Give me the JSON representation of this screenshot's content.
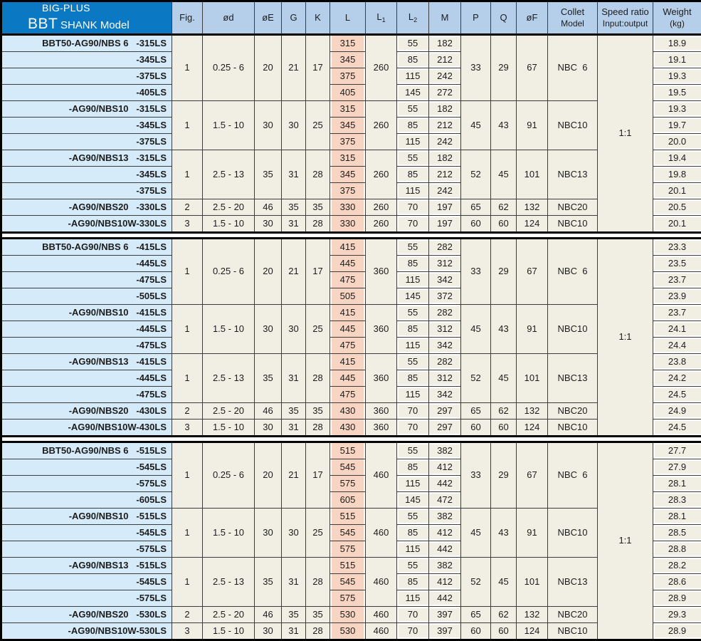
{
  "header": {
    "brand": "BIG-PLUS",
    "model_big": "BBT",
    "model_rest": "SHANK Model"
  },
  "colors": {
    "header_blue": "#0a78c2",
    "column_header_bg": "#b5cfea",
    "model_cell_bg": "#d6ebf9",
    "l_column_bg": "#f8d5c3",
    "data_cell_bg": "#f1efe3",
    "border": "#3c3c3c"
  },
  "columns": [
    {
      "key": "fig",
      "label": "Fig."
    },
    {
      "key": "od",
      "label": "ød"
    },
    {
      "key": "oE",
      "label": "øE"
    },
    {
      "key": "G",
      "label": "G"
    },
    {
      "key": "K",
      "label": "K"
    },
    {
      "key": "L",
      "label": "L"
    },
    {
      "key": "L1",
      "label": "L",
      "sub": "1"
    },
    {
      "key": "L2",
      "label": "L",
      "sub": "2"
    },
    {
      "key": "M",
      "label": "M"
    },
    {
      "key": "P",
      "label": "P"
    },
    {
      "key": "Q",
      "label": "Q"
    },
    {
      "key": "oF",
      "label": "øF"
    },
    {
      "key": "collet",
      "label": "Collet",
      "line2": "Model"
    },
    {
      "key": "speed",
      "label": "Speed ratio",
      "line2": "Input:output"
    },
    {
      "key": "weight",
      "label": "Weight",
      "line2": "(kg)"
    }
  ],
  "sections": [
    {
      "speed_ratio": "1:1",
      "groups": [
        {
          "fig": "1",
          "od": "0.25 - 6",
          "oE": "20",
          "G": "21",
          "K": "17",
          "L1": "260",
          "P": "33",
          "Q": "29",
          "oF": "67",
          "collet": "NBC  6",
          "rows": [
            {
              "model": "BBT50-AG90/NBS 6   -315LS",
              "L": "315",
              "L2": "55",
              "M": "182",
              "weight": "18.9"
            },
            {
              "model": "-345LS",
              "L": "345",
              "L2": "85",
              "M": "212",
              "weight": "19.1"
            },
            {
              "model": "-375LS",
              "L": "375",
              "L2": "115",
              "M": "242",
              "weight": "19.3"
            },
            {
              "model": "-405LS",
              "L": "405",
              "L2": "145",
              "M": "272",
              "weight": "19.5"
            }
          ]
        },
        {
          "fig": "1",
          "od": "1.5 - 10",
          "oE": "30",
          "G": "30",
          "K": "25",
          "L1": "260",
          "P": "45",
          "Q": "43",
          "oF": "91",
          "collet": "NBC10",
          "rows": [
            {
              "model": "-AG90/NBS10   -315LS",
              "L": "315",
              "L2": "55",
              "M": "182",
              "weight": "19.3"
            },
            {
              "model": "-345LS",
              "L": "345",
              "L2": "85",
              "M": "212",
              "weight": "19.7"
            },
            {
              "model": "-375LS",
              "L": "375",
              "L2": "115",
              "M": "242",
              "weight": "20.0"
            }
          ]
        },
        {
          "fig": "1",
          "od": "2.5 - 13",
          "oE": "35",
          "G": "31",
          "K": "28",
          "L1": "260",
          "P": "52",
          "Q": "45",
          "oF": "101",
          "collet": "NBC13",
          "rows": [
            {
              "model": "-AG90/NBS13   -315LS",
              "L": "315",
              "L2": "55",
              "M": "182",
              "weight": "19.4"
            },
            {
              "model": "-345LS",
              "L": "345",
              "L2": "85",
              "M": "212",
              "weight": "19.8"
            },
            {
              "model": "-375LS",
              "L": "375",
              "L2": "115",
              "M": "242",
              "weight": "20.1"
            }
          ]
        },
        {
          "fig": "2",
          "od": "2.5 - 20",
          "oE": "46",
          "G": "35",
          "K": "35",
          "L1": "260",
          "P": "65",
          "Q": "62",
          "oF": "132",
          "collet": "NBC20",
          "rows": [
            {
              "model": "-AG90/NBS20   -330LS",
              "L": "330",
              "L2": "70",
              "M": "197",
              "weight": "20.5"
            }
          ]
        },
        {
          "fig": "3",
          "od": "1.5 - 10",
          "oE": "30",
          "G": "31",
          "K": "28",
          "L1": "260",
          "P": "60",
          "Q": "60",
          "oF": "124",
          "collet": "NBC10",
          "rows": [
            {
              "model": "-AG90/NBS10W-330LS",
              "L": "330",
              "L2": "70",
              "M": "197",
              "weight": "20.1"
            }
          ]
        }
      ]
    },
    {
      "speed_ratio": "1:1",
      "groups": [
        {
          "fig": "1",
          "od": "0.25 - 6",
          "oE": "20",
          "G": "21",
          "K": "17",
          "L1": "360",
          "P": "33",
          "Q": "29",
          "oF": "67",
          "collet": "NBC  6",
          "rows": [
            {
              "model": "BBT50-AG90/NBS 6   -415LS",
              "L": "415",
              "L2": "55",
              "M": "282",
              "weight": "23.3"
            },
            {
              "model": "-445LS",
              "L": "445",
              "L2": "85",
              "M": "312",
              "weight": "23.5"
            },
            {
              "model": "-475LS",
              "L": "475",
              "L2": "115",
              "M": "342",
              "weight": "23.7"
            },
            {
              "model": "-505LS",
              "L": "505",
              "L2": "145",
              "M": "372",
              "weight": "23.9"
            }
          ]
        },
        {
          "fig": "1",
          "od": "1.5 - 10",
          "oE": "30",
          "G": "30",
          "K": "25",
          "L1": "360",
          "P": "45",
          "Q": "43",
          "oF": "91",
          "collet": "NBC10",
          "rows": [
            {
              "model": "-AG90/NBS10   -415LS",
              "L": "415",
              "L2": "55",
              "M": "282",
              "weight": "23.7"
            },
            {
              "model": "-445LS",
              "L": "445",
              "L2": "85",
              "M": "312",
              "weight": "24.1"
            },
            {
              "model": "-475LS",
              "L": "475",
              "L2": "115",
              "M": "342",
              "weight": "24.4"
            }
          ]
        },
        {
          "fig": "1",
          "od": "2.5 - 13",
          "oE": "35",
          "G": "31",
          "K": "28",
          "L1": "360",
          "P": "52",
          "Q": "45",
          "oF": "101",
          "collet": "NBC13",
          "rows": [
            {
              "model": "-AG90/NBS13   -415LS",
              "L": "415",
              "L2": "55",
              "M": "282",
              "weight": "23.8"
            },
            {
              "model": "-445LS",
              "L": "445",
              "L2": "85",
              "M": "312",
              "weight": "24.2"
            },
            {
              "model": "-475LS",
              "L": "475",
              "L2": "115",
              "M": "342",
              "weight": "24.5"
            }
          ]
        },
        {
          "fig": "2",
          "od": "2.5 - 20",
          "oE": "46",
          "G": "35",
          "K": "35",
          "L1": "360",
          "P": "65",
          "Q": "62",
          "oF": "132",
          "collet": "NBC20",
          "rows": [
            {
              "model": "-AG90/NBS20   -430LS",
              "L": "430",
              "L2": "70",
              "M": "297",
              "weight": "24.9"
            }
          ]
        },
        {
          "fig": "3",
          "od": "1.5 - 10",
          "oE": "30",
          "G": "31",
          "K": "28",
          "L1": "360",
          "P": "60",
          "Q": "60",
          "oF": "124",
          "collet": "NBC10",
          "rows": [
            {
              "model": "-AG90/NBS10W-430LS",
              "L": "430",
              "L2": "70",
              "M": "297",
              "weight": "24.5"
            }
          ]
        }
      ]
    },
    {
      "speed_ratio": "1:1",
      "groups": [
        {
          "fig": "1",
          "od": "0.25 - 6",
          "oE": "20",
          "G": "21",
          "K": "17",
          "L1": "460",
          "P": "33",
          "Q": "29",
          "oF": "67",
          "collet": "NBC  6",
          "rows": [
            {
              "model": "BBT50-AG90/NBS 6   -515LS",
              "L": "515",
              "L2": "55",
              "M": "382",
              "weight": "27.7"
            },
            {
              "model": "-545LS",
              "L": "545",
              "L2": "85",
              "M": "412",
              "weight": "27.9"
            },
            {
              "model": "-575LS",
              "L": "575",
              "L2": "115",
              "M": "442",
              "weight": "28.1"
            },
            {
              "model": "-605LS",
              "L": "605",
              "L2": "145",
              "M": "472",
              "weight": "28.3"
            }
          ]
        },
        {
          "fig": "1",
          "od": "1.5 - 10",
          "oE": "30",
          "G": "30",
          "K": "25",
          "L1": "460",
          "P": "45",
          "Q": "43",
          "oF": "91",
          "collet": "NBC10",
          "rows": [
            {
              "model": "-AG90/NBS10   -515LS",
              "L": "515",
              "L2": "55",
              "M": "382",
              "weight": "28.1"
            },
            {
              "model": "-545LS",
              "L": "545",
              "L2": "85",
              "M": "412",
              "weight": "28.5"
            },
            {
              "model": "-575LS",
              "L": "575",
              "L2": "115",
              "M": "442",
              "weight": "28.8"
            }
          ]
        },
        {
          "fig": "1",
          "od": "2.5 - 13",
          "oE": "35",
          "G": "31",
          "K": "28",
          "L1": "460",
          "P": "52",
          "Q": "45",
          "oF": "101",
          "collet": "NBC13",
          "rows": [
            {
              "model": "-AG90/NBS13   -515LS",
              "L": "515",
              "L2": "55",
              "M": "382",
              "weight": "28.2"
            },
            {
              "model": "-545LS",
              "L": "545",
              "L2": "85",
              "M": "412",
              "weight": "28.6"
            },
            {
              "model": "-575LS",
              "L": "575",
              "L2": "115",
              "M": "442",
              "weight": "28.9"
            }
          ]
        },
        {
          "fig": "2",
          "od": "2.5 - 20",
          "oE": "46",
          "G": "35",
          "K": "35",
          "L1": "460",
          "P": "65",
          "Q": "62",
          "oF": "132",
          "collet": "NBC20",
          "rows": [
            {
              "model": "-AG90/NBS20   -530LS",
              "L": "530",
              "L2": "70",
              "M": "397",
              "weight": "29.3"
            }
          ]
        },
        {
          "fig": "3",
          "od": "1.5 - 10",
          "oE": "30",
          "G": "31",
          "K": "28",
          "L1": "460",
          "P": "60",
          "Q": "60",
          "oF": "124",
          "collet": "NBC10",
          "rows": [
            {
              "model": "-AG90/NBS10W-530LS",
              "L": "530",
              "L2": "70",
              "M": "397",
              "weight": "28.9"
            }
          ]
        }
      ]
    }
  ]
}
